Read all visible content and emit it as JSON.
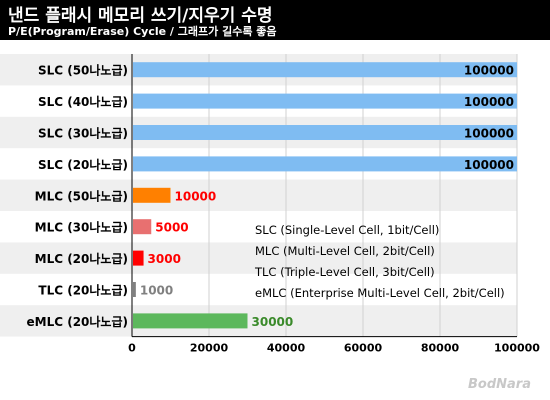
{
  "header": {
    "title": "낸드 플래시 메모리 쓰기/지우기 수명",
    "subtitle": "P/E(Program/Erase) Cycle / 그래프가 길수록 좋음"
  },
  "chart_data": {
    "type": "bar",
    "orientation": "horizontal",
    "categories": [
      "SLC (50나노급)",
      "SLC (40나노급)",
      "SLC (30나노급)",
      "SLC (20나노급)",
      "MLC (50나노급)",
      "MLC (30나노급)",
      "MLC (20나노급)",
      "TLC (20나노급)",
      "eMLC (20나노급)"
    ],
    "values": [
      100000,
      100000,
      100000,
      100000,
      10000,
      5000,
      3000,
      1000,
      30000
    ],
    "value_labels": [
      "100000",
      "100000",
      "100000",
      "100000",
      "10000",
      "5000",
      "3000",
      "1000",
      "30000"
    ],
    "bar_colors": [
      "#7fbcf2",
      "#7fbcf2",
      "#7fbcf2",
      "#7fbcf2",
      "#ff8000",
      "#e87070",
      "#ff0000",
      "#808080",
      "#5cb85c"
    ],
    "label_colors": [
      "#000000",
      "#000000",
      "#000000",
      "#000000",
      "#ff0000",
      "#ff0000",
      "#ff0000",
      "#808080",
      "#3a8a2a"
    ],
    "xlim": [
      0,
      100000
    ],
    "xticks": [
      "0",
      "20000",
      "40000",
      "60000",
      "80000",
      "100000"
    ],
    "xtick_values": [
      0,
      20000,
      40000,
      60000,
      80000,
      100000
    ],
    "grid": true,
    "band_color": "#efefef",
    "annotations": [
      "SLC (Single-Level Cell, 1bit/Cell)",
      "MLC (Multi-Level Cell, 2bit/Cell)",
      "TLC (Triple-Level Cell, 3bit/Cell)",
      "eMLC (Enterprise Multi-Level Cell, 2bit/Cell)"
    ]
  },
  "footer": {
    "logo_text": "BodNara"
  }
}
